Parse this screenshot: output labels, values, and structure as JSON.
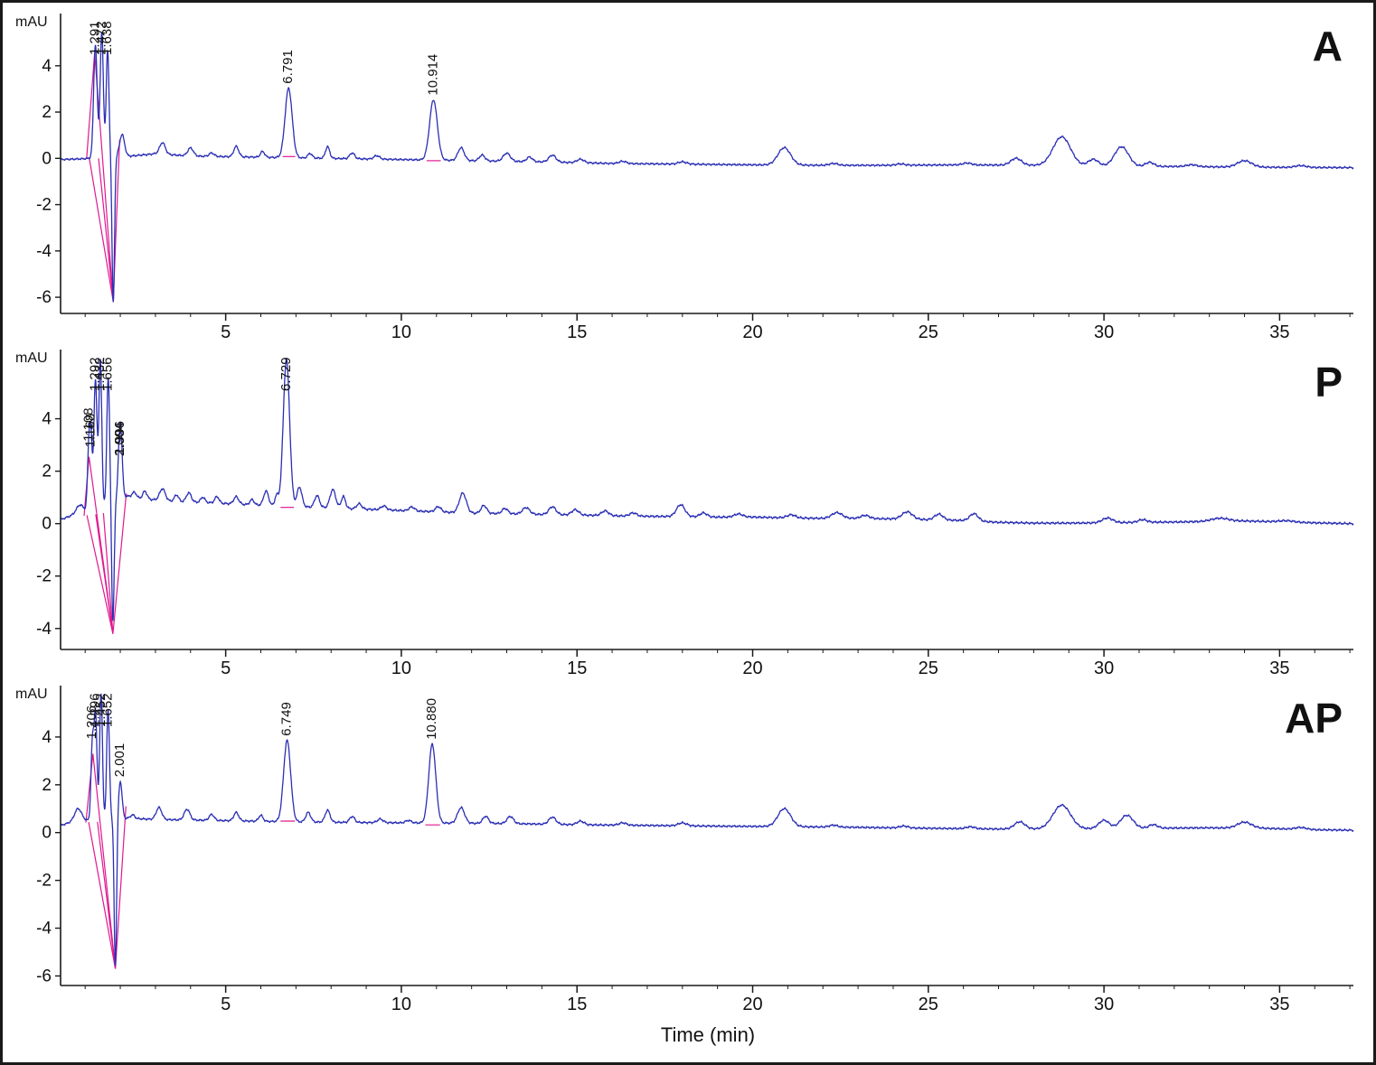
{
  "figure": {
    "xlabel": "Time (min)",
    "background": "#ffffff",
    "border_color": "#1a1a1a",
    "axis_color": "#1a1a1a",
    "trace_color": "#2b2fb4",
    "integration_color": "#e0188f"
  },
  "chart_data": [
    {
      "type": "line",
      "panel_label": "A",
      "ylabel": "mAU",
      "xlabel": "Time (min)",
      "xlim": [
        0.3,
        37.1
      ],
      "ylim": [
        -6.7,
        6.1
      ],
      "x_ticks": [
        5,
        10,
        15,
        20,
        25,
        30,
        35
      ],
      "y_ticks": [
        4,
        2,
        0,
        -2,
        -4,
        -6
      ],
      "grid": false,
      "legend": "none",
      "labeled_peaks": [
        {
          "label": "1.291",
          "t": 1.291,
          "h": 4.9,
          "w": 0.05
        },
        {
          "label": "1.472",
          "t": 1.472,
          "h": 5.4,
          "w": 0.045
        },
        {
          "label": "1.638",
          "t": 1.638,
          "h": 4.6,
          "w": 0.04
        },
        {
          "label": "6.791",
          "t": 6.791,
          "h": 3.0,
          "w": 0.1
        },
        {
          "label": "10.914",
          "t": 10.914,
          "h": 2.6,
          "w": 0.11
        }
      ],
      "negative_spike": {
        "t": 1.8,
        "depth": -6.3,
        "w": 0.035
      },
      "minor_features": [
        [
          2.05,
          0.95,
          0.07
        ],
        [
          3.2,
          0.5,
          0.08
        ],
        [
          4.0,
          0.35,
          0.08
        ],
        [
          4.6,
          0.15,
          0.07
        ],
        [
          5.3,
          0.45,
          0.07
        ],
        [
          6.05,
          0.25,
          0.06
        ],
        [
          7.4,
          0.2,
          0.06
        ],
        [
          7.9,
          0.5,
          0.06
        ],
        [
          8.6,
          0.25,
          0.07
        ],
        [
          9.3,
          0.15,
          0.08
        ],
        [
          11.7,
          0.55,
          0.09
        ],
        [
          12.3,
          0.25,
          0.08
        ],
        [
          13.0,
          0.35,
          0.1
        ],
        [
          13.65,
          0.2,
          0.08
        ],
        [
          14.3,
          0.3,
          0.1
        ],
        [
          15.1,
          0.15,
          0.1
        ],
        [
          16.3,
          0.1,
          0.1
        ],
        [
          18.0,
          0.1,
          0.12
        ],
        [
          20.9,
          0.75,
          0.18
        ],
        [
          22.3,
          0.08,
          0.12
        ],
        [
          24.2,
          0.06,
          0.12
        ],
        [
          26.1,
          0.08,
          0.12
        ],
        [
          27.5,
          0.3,
          0.15
        ],
        [
          28.8,
          1.25,
          0.25
        ],
        [
          29.7,
          0.3,
          0.15
        ],
        [
          30.5,
          0.85,
          0.2
        ],
        [
          31.3,
          0.18,
          0.12
        ],
        [
          32.5,
          0.08,
          0.15
        ],
        [
          34.0,
          0.28,
          0.2
        ],
        [
          35.6,
          0.08,
          0.15
        ]
      ],
      "baseline_points": [
        [
          0.3,
          -0.05
        ],
        [
          0.9,
          -0.02
        ],
        [
          2.3,
          0.1
        ],
        [
          3.0,
          0.2
        ],
        [
          4.0,
          0.1
        ],
        [
          6.0,
          0.05
        ],
        [
          8,
          0.0
        ],
        [
          10,
          -0.05
        ],
        [
          12,
          -0.1
        ],
        [
          14,
          -0.15
        ],
        [
          16,
          -0.22
        ],
        [
          18,
          -0.25
        ],
        [
          20,
          -0.28
        ],
        [
          22,
          -0.3
        ],
        [
          24,
          -0.3
        ],
        [
          26,
          -0.28
        ],
        [
          28,
          -0.3
        ],
        [
          30,
          -0.35
        ],
        [
          32,
          -0.35
        ],
        [
          34,
          -0.38
        ],
        [
          37,
          -0.4
        ]
      ],
      "integration_lines": [
        [
          [
            1.04,
            -0.02
          ],
          [
            1.27,
            4.55
          ],
          [
            1.8,
            -6.2
          ],
          [
            1.98,
            0.8
          ]
        ],
        [
          [
            1.12,
            -0.02
          ],
          [
            1.8,
            -6.2
          ]
        ],
        [
          [
            1.38,
            0.0
          ],
          [
            1.8,
            -6.2
          ]
        ],
        [
          [
            6.62,
            0.08
          ],
          [
            6.98,
            0.08
          ]
        ],
        [
          [
            10.72,
            -0.1
          ],
          [
            11.12,
            -0.1
          ]
        ]
      ]
    },
    {
      "type": "line",
      "panel_label": "P",
      "ylabel": "mAU",
      "xlabel": "Time (min)",
      "xlim": [
        0.3,
        37.1
      ],
      "ylim": [
        -4.8,
        6.5
      ],
      "x_ticks": [
        5,
        10,
        15,
        20,
        25,
        30,
        35
      ],
      "y_ticks": [
        4,
        2,
        0,
        -2,
        -4
      ],
      "grid": false,
      "legend": "none",
      "labeled_peaks": [
        {
          "label": "1.108",
          "t": 1.108,
          "h": 2.45,
          "w": 0.04
        },
        {
          "label": "1.168",
          "t": 1.168,
          "h": 2.2,
          "w": 0.035
        },
        {
          "label": "1.292",
          "t": 1.292,
          "h": 4.9,
          "w": 0.045
        },
        {
          "label": "1.432",
          "t": 1.432,
          "h": 5.6,
          "w": 0.04
        },
        {
          "label": "1.656",
          "t": 1.656,
          "h": 4.8,
          "w": 0.04
        },
        {
          "label": "1.996",
          "t": 1.996,
          "h": 1.5,
          "w": 0.05
        },
        {
          "label": "2.004",
          "t": 2.004,
          "h": 1.45,
          "w": 0.05
        },
        {
          "label": "6.729",
          "t": 6.729,
          "h": 5.6,
          "w": 0.09
        }
      ],
      "negative_spike": {
        "t": 1.79,
        "depth": -4.6,
        "w": 0.035
      },
      "minor_features": [
        [
          0.85,
          0.3,
          0.1
        ],
        [
          2.4,
          0.2,
          0.06
        ],
        [
          2.7,
          0.3,
          0.06
        ],
        [
          3.2,
          0.45,
          0.08
        ],
        [
          3.6,
          0.25,
          0.06
        ],
        [
          3.95,
          0.35,
          0.07
        ],
        [
          4.35,
          0.2,
          0.06
        ],
        [
          4.75,
          0.25,
          0.06
        ],
        [
          5.3,
          0.28,
          0.07
        ],
        [
          5.75,
          0.2,
          0.06
        ],
        [
          6.15,
          0.55,
          0.07
        ],
        [
          6.45,
          0.4,
          0.05
        ],
        [
          7.1,
          0.75,
          0.07
        ],
        [
          7.6,
          0.45,
          0.07
        ],
        [
          8.05,
          0.7,
          0.08
        ],
        [
          8.35,
          0.45,
          0.06
        ],
        [
          8.8,
          0.2,
          0.07
        ],
        [
          9.5,
          0.15,
          0.08
        ],
        [
          10.3,
          0.15,
          0.08
        ],
        [
          11.05,
          0.2,
          0.08
        ],
        [
          11.75,
          0.75,
          0.1
        ],
        [
          12.35,
          0.3,
          0.08
        ],
        [
          12.95,
          0.2,
          0.08
        ],
        [
          13.55,
          0.25,
          0.1
        ],
        [
          14.3,
          0.3,
          0.1
        ],
        [
          14.95,
          0.2,
          0.1
        ],
        [
          15.8,
          0.18,
          0.1
        ],
        [
          16.6,
          0.12,
          0.1
        ],
        [
          17.95,
          0.45,
          0.12
        ],
        [
          18.6,
          0.15,
          0.1
        ],
        [
          19.6,
          0.12,
          0.12
        ],
        [
          21.1,
          0.12,
          0.12
        ],
        [
          22.4,
          0.22,
          0.15
        ],
        [
          23.2,
          0.12,
          0.12
        ],
        [
          24.4,
          0.28,
          0.15
        ],
        [
          25.3,
          0.22,
          0.12
        ],
        [
          26.3,
          0.28,
          0.12
        ],
        [
          30.1,
          0.18,
          0.15
        ],
        [
          31.1,
          0.1,
          0.12
        ],
        [
          33.3,
          0.12,
          0.25
        ],
        [
          35.2,
          0.05,
          0.2
        ]
      ],
      "baseline_points": [
        [
          0.3,
          0.15
        ],
        [
          0.8,
          0.4
        ],
        [
          1.0,
          0.45
        ],
        [
          2.2,
          1.05
        ],
        [
          2.6,
          0.95
        ],
        [
          3.5,
          0.85
        ],
        [
          4.5,
          0.8
        ],
        [
          6,
          0.7
        ],
        [
          7,
          0.65
        ],
        [
          8,
          0.6
        ],
        [
          9,
          0.55
        ],
        [
          10,
          0.5
        ],
        [
          11,
          0.45
        ],
        [
          12,
          0.4
        ],
        [
          13,
          0.38
        ],
        [
          14,
          0.35
        ],
        [
          15,
          0.33
        ],
        [
          16,
          0.3
        ],
        [
          17,
          0.28
        ],
        [
          18,
          0.27
        ],
        [
          19,
          0.25
        ],
        [
          20,
          0.25
        ],
        [
          21,
          0.22
        ],
        [
          22,
          0.2
        ],
        [
          23,
          0.2
        ],
        [
          24,
          0.18
        ],
        [
          25,
          0.15
        ],
        [
          26,
          0.12
        ],
        [
          27,
          0.05
        ],
        [
          28,
          0.02
        ],
        [
          29,
          0.02
        ],
        [
          30,
          0.03
        ],
        [
          31,
          0.05
        ],
        [
          32,
          0.06
        ],
        [
          33,
          0.08
        ],
        [
          34,
          0.1
        ],
        [
          35,
          0.07
        ],
        [
          36,
          0.03
        ],
        [
          37,
          0.0
        ]
      ],
      "integration_lines": [
        [
          [
            0.97,
            0.3
          ],
          [
            1.11,
            2.55
          ],
          [
            1.79,
            -4.2
          ],
          [
            2.17,
            1.15
          ]
        ],
        [
          [
            1.05,
            0.32
          ],
          [
            1.79,
            -4.2
          ]
        ],
        [
          [
            1.3,
            0.35
          ],
          [
            1.79,
            -4.2
          ]
        ],
        [
          [
            1.52,
            0.4
          ],
          [
            1.79,
            -4.2
          ]
        ],
        [
          [
            6.56,
            0.62
          ],
          [
            6.94,
            0.62
          ]
        ]
      ]
    },
    {
      "type": "line",
      "panel_label": "AP",
      "ylabel": "mAU",
      "xlabel": "Time (min)",
      "xlim": [
        0.3,
        37.1
      ],
      "ylim": [
        -6.4,
        6.0
      ],
      "x_ticks": [
        5,
        10,
        15,
        20,
        25,
        30,
        35
      ],
      "y_ticks": [
        4,
        2,
        0,
        -2,
        -4,
        -6
      ],
      "grid": false,
      "legend": "none",
      "labeled_peaks": [
        {
          "label": "1.206",
          "t": 1.206,
          "h": 3.2,
          "w": 0.04
        },
        {
          "label": "1.296",
          "t": 1.296,
          "h": 4.4,
          "w": 0.04
        },
        {
          "label": "1.452",
          "t": 1.452,
          "h": 5.3,
          "w": 0.04
        },
        {
          "label": "1.652",
          "t": 1.652,
          "h": 4.6,
          "w": 0.04
        },
        {
          "label": "2.001",
          "t": 2.001,
          "h": 1.55,
          "w": 0.05
        },
        {
          "label": "6.749",
          "t": 6.749,
          "h": 3.4,
          "w": 0.1
        },
        {
          "label": "10.880",
          "t": 10.88,
          "h": 3.3,
          "w": 0.1
        }
      ],
      "negative_spike": {
        "t": 1.86,
        "depth": -6.2,
        "w": 0.035
      },
      "minor_features": [
        [
          0.8,
          0.5,
          0.1
        ],
        [
          2.35,
          0.15,
          0.06
        ],
        [
          3.1,
          0.5,
          0.08
        ],
        [
          3.9,
          0.45,
          0.08
        ],
        [
          4.6,
          0.25,
          0.07
        ],
        [
          5.3,
          0.35,
          0.07
        ],
        [
          6.0,
          0.25,
          0.06
        ],
        [
          7.35,
          0.4,
          0.07
        ],
        [
          7.9,
          0.5,
          0.07
        ],
        [
          8.6,
          0.25,
          0.07
        ],
        [
          9.4,
          0.15,
          0.08
        ],
        [
          10.2,
          0.1,
          0.08
        ],
        [
          11.7,
          0.65,
          0.1
        ],
        [
          12.4,
          0.3,
          0.08
        ],
        [
          13.1,
          0.3,
          0.09
        ],
        [
          14.3,
          0.3,
          0.1
        ],
        [
          15.1,
          0.15,
          0.1
        ],
        [
          16.3,
          0.1,
          0.1
        ],
        [
          18.0,
          0.12,
          0.12
        ],
        [
          20.9,
          0.75,
          0.18
        ],
        [
          22.3,
          0.08,
          0.12
        ],
        [
          24.3,
          0.08,
          0.12
        ],
        [
          26.2,
          0.08,
          0.12
        ],
        [
          27.6,
          0.3,
          0.15
        ],
        [
          28.8,
          1.0,
          0.25
        ],
        [
          30.0,
          0.35,
          0.15
        ],
        [
          30.65,
          0.55,
          0.18
        ],
        [
          31.4,
          0.15,
          0.12
        ],
        [
          34.0,
          0.25,
          0.2
        ],
        [
          35.6,
          0.08,
          0.15
        ]
      ],
      "baseline_points": [
        [
          0.3,
          0.3
        ],
        [
          0.75,
          0.5
        ],
        [
          1.0,
          0.5
        ],
        [
          2.2,
          0.6
        ],
        [
          3,
          0.55
        ],
        [
          5,
          0.5
        ],
        [
          7,
          0.45
        ],
        [
          9,
          0.42
        ],
        [
          11,
          0.4
        ],
        [
          13,
          0.38
        ],
        [
          15,
          0.33
        ],
        [
          17,
          0.3
        ],
        [
          19,
          0.27
        ],
        [
          21,
          0.25
        ],
        [
          23,
          0.22
        ],
        [
          25,
          0.18
        ],
        [
          27,
          0.15
        ],
        [
          29,
          0.15
        ],
        [
          31,
          0.18
        ],
        [
          33,
          0.2
        ],
        [
          34.5,
          0.18
        ],
        [
          36,
          0.12
        ],
        [
          37,
          0.1
        ]
      ],
      "integration_lines": [
        [
          [
            1.02,
            0.42
          ],
          [
            1.22,
            3.3
          ],
          [
            1.86,
            -5.7
          ],
          [
            2.16,
            1.1
          ]
        ],
        [
          [
            1.1,
            0.44
          ],
          [
            1.86,
            -5.7
          ]
        ],
        [
          [
            1.35,
            0.45
          ],
          [
            1.86,
            -5.7
          ]
        ],
        [
          [
            6.56,
            0.48
          ],
          [
            6.97,
            0.48
          ]
        ],
        [
          [
            10.68,
            0.32
          ],
          [
            11.1,
            0.32
          ]
        ]
      ]
    }
  ]
}
